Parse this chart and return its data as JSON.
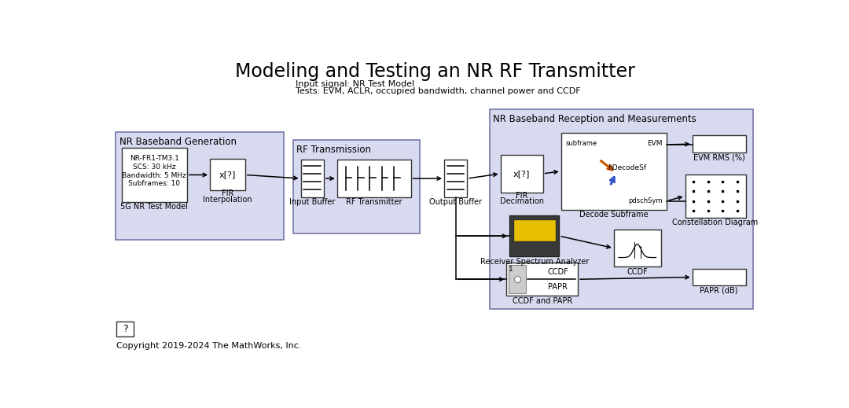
{
  "title": "Modeling and Testing an NR RF Transmitter",
  "subtitle_line1": "Input signal: NR Test Model",
  "subtitle_line2": "Tests: EVM, ACLR, occupied bandwidth, channel power and CCDF",
  "copyright": "Copyright 2019-2024 The MathWorks, Inc.",
  "bg_color": "#ffffff",
  "group_bg": "#d8daf0",
  "group_border": "#7777aa",
  "box_bg": "#ffffff",
  "box_border": "#333333",
  "title_fontsize": 17,
  "sub_fontsize": 8,
  "label_fontsize": 7,
  "group_label_fontsize": 8.5
}
